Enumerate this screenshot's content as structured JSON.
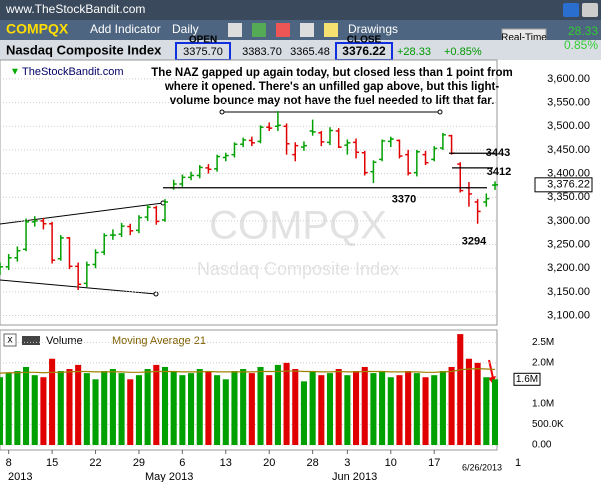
{
  "site": "www.TheStockBandit.com",
  "toolbar": {
    "symbol": "COMPQX",
    "add_indicator": "Add Indicator",
    "period": "Daily",
    "drawings": "Drawings",
    "realtime": "Real-Time",
    "change": "28.33",
    "change_pct": "0.85%"
  },
  "quote": {
    "name": "Nasdaq Composite Index",
    "open_label": "OPEN",
    "open": "3375.70",
    "high": "3383.70",
    "low": "3365.48",
    "close_label": "CLOSE",
    "close": "3376.22",
    "change": "+28.33",
    "change_pct": "+0.85%"
  },
  "chart_data": {
    "type": "ohlc",
    "source": "TheStockBandit.com",
    "watermark": "COMPQX",
    "watermark_name": "Nasdaq Composite Index",
    "annotation": [
      "The NAZ gapped up again today, but closed less than 1 point from",
      "where it opened. There's an unfilled gap above, but this light-",
      "volume bounce may not have the fuel needed to lift that far."
    ],
    "levels": [
      3443,
      3412,
      3370,
      3294
    ],
    "last_price": {
      "value": 3376.22,
      "label": "3,376.22"
    },
    "up_color": "#00a000",
    "down_color": "#e00000",
    "categories": [
      null,
      "8",
      null,
      null,
      null,
      null,
      "15",
      null,
      null,
      null,
      null,
      "22",
      null,
      null,
      null,
      null,
      "29",
      null,
      null,
      null,
      null,
      "6",
      null,
      null,
      null,
      null,
      "13",
      null,
      null,
      null,
      null,
      "20",
      null,
      null,
      null,
      null,
      "28",
      null,
      null,
      null,
      "3",
      null,
      null,
      null,
      null,
      "10",
      null,
      null,
      null,
      null,
      "17",
      null,
      null,
      null,
      null,
      null,
      null,
      null
    ],
    "months": [
      "2013",
      "May 2013",
      "Jun 2013"
    ],
    "last_date": "6/26/2013",
    "next_label": "1",
    "ohlc": [
      [
        3195,
        3212,
        3186,
        3203
      ],
      [
        3203,
        3230,
        3196,
        3222
      ],
      [
        3222,
        3246,
        3214,
        3237
      ],
      [
        3240,
        3305,
        3236,
        3298
      ],
      [
        3298,
        3310,
        3288,
        3300
      ],
      [
        3300,
        3306,
        3282,
        3294
      ],
      [
        3294,
        3298,
        3210,
        3217
      ],
      [
        3220,
        3270,
        3216,
        3264
      ],
      [
        3264,
        3266,
        3198,
        3204
      ],
      [
        3204,
        3212,
        3154,
        3166
      ],
      [
        3168,
        3214,
        3160,
        3207
      ],
      [
        3208,
        3240,
        3200,
        3233
      ],
      [
        3234,
        3274,
        3228,
        3269
      ],
      [
        3270,
        3282,
        3260,
        3270
      ],
      [
        3272,
        3296,
        3266,
        3289
      ],
      [
        3288,
        3294,
        3270,
        3279
      ],
      [
        3280,
        3312,
        3274,
        3307
      ],
      [
        3308,
        3334,
        3300,
        3329
      ],
      [
        3328,
        3332,
        3292,
        3299
      ],
      [
        3302,
        3346,
        3298,
        3340
      ],
      [
        3370,
        3387,
        3366,
        3378
      ],
      [
        3378,
        3398,
        3372,
        3392
      ],
      [
        3392,
        3404,
        3386,
        3396
      ],
      [
        3396,
        3418,
        3390,
        3413
      ],
      [
        3412,
        3420,
        3400,
        3409
      ],
      [
        3410,
        3440,
        3404,
        3436
      ],
      [
        3434,
        3444,
        3426,
        3438
      ],
      [
        3440,
        3466,
        3434,
        3462
      ],
      [
        3462,
        3476,
        3456,
        3471
      ],
      [
        3470,
        3478,
        3458,
        3465
      ],
      [
        3468,
        3502,
        3464,
        3498
      ],
      [
        3498,
        3508,
        3490,
        3496
      ],
      [
        3500,
        3532,
        3490,
        3502
      ],
      [
        3500,
        3506,
        3440,
        3463
      ],
      [
        3440,
        3466,
        3426,
        3459
      ],
      [
        3456,
        3468,
        3448,
        3459
      ],
      [
        3490,
        3514,
        3480,
        3488
      ],
      [
        3486,
        3490,
        3458,
        3467
      ],
      [
        3466,
        3498,
        3460,
        3491
      ],
      [
        3490,
        3496,
        3454,
        3456
      ],
      [
        3460,
        3472,
        3440,
        3465
      ],
      [
        3466,
        3474,
        3432,
        3445
      ],
      [
        3444,
        3448,
        3396,
        3402
      ],
      [
        3404,
        3428,
        3380,
        3424
      ],
      [
        3430,
        3472,
        3426,
        3469
      ],
      [
        3468,
        3478,
        3456,
        3473
      ],
      [
        3470,
        3472,
        3432,
        3437
      ],
      [
        3440,
        3450,
        3396,
        3401
      ],
      [
        3402,
        3450,
        3394,
        3446
      ],
      [
        3440,
        3448,
        3418,
        3423
      ],
      [
        3430,
        3458,
        3426,
        3453
      ],
      [
        3454,
        3486,
        3450,
        3482
      ],
      [
        3480,
        3482,
        3440,
        3443
      ],
      [
        3420,
        3424,
        3360,
        3364
      ],
      [
        3370,
        3382,
        3330,
        3357
      ],
      [
        3340,
        3346,
        3294,
        3320
      ],
      [
        3340,
        3358,
        3330,
        3347
      ],
      [
        3375.7,
        3383.7,
        3365.48,
        3376.22
      ]
    ],
    "ylim": [
      3080,
      3640
    ],
    "yticks": [
      {
        "value": 3100,
        "label": "3,100.00"
      },
      {
        "value": 3150,
        "label": "3,150.00"
      },
      {
        "value": 3200,
        "label": "3,200.00"
      },
      {
        "value": 3250,
        "label": "3,250.00"
      },
      {
        "value": 3300,
        "label": "3,300.00"
      },
      {
        "value": 3350,
        "label": "3,350.00"
      },
      {
        "value": 3400,
        "label": "3,400.00"
      },
      {
        "value": 3450,
        "label": "3,450.00"
      },
      {
        "value": 3500,
        "label": "3,500.00"
      },
      {
        "value": 3550,
        "label": "3,550.00"
      },
      {
        "value": 3600,
        "label": "3,600.00"
      }
    ],
    "volume": {
      "name": "Volume",
      "ma_name": "Moving Average 21",
      "ma_color": "#a08000",
      "values": [
        1650000,
        1750000,
        1800000,
        1900000,
        1700000,
        1650000,
        2100000,
        1800000,
        1850000,
        1950000,
        1750000,
        1600000,
        1800000,
        1850000,
        1750000,
        1600000,
        1700000,
        1850000,
        1950000,
        1900000,
        1800000,
        1700000,
        1750000,
        1850000,
        1800000,
        1700000,
        1600000,
        1800000,
        1850000,
        1750000,
        1900000,
        1700000,
        1950000,
        2000000,
        1850000,
        1550000,
        1800000,
        1700000,
        1750000,
        1850000,
        1700000,
        1800000,
        1900000,
        1750000,
        1800000,
        1650000,
        1700000,
        1800000,
        1750000,
        1650000,
        1700000,
        1800000,
        1900000,
        2700000,
        2100000,
        2000000,
        1650000,
        1600000
      ],
      "ma": [
        1750000,
        1760000,
        1760000,
        1770000,
        1770000,
        1760000,
        1770000,
        1770000,
        1780000,
        1790000,
        1790000,
        1780000,
        1780000,
        1780000,
        1780000,
        1770000,
        1770000,
        1780000,
        1790000,
        1790000,
        1790000,
        1780000,
        1780000,
        1780000,
        1790000,
        1780000,
        1780000,
        1780000,
        1780000,
        1780000,
        1790000,
        1790000,
        1790000,
        1800000,
        1800000,
        1790000,
        1790000,
        1780000,
        1780000,
        1790000,
        1780000,
        1780000,
        1790000,
        1790000,
        1790000,
        1780000,
        1780000,
        1780000,
        1780000,
        1770000,
        1770000,
        1780000,
        1790000,
        1830000,
        1850000,
        1860000,
        1850000,
        1840000
      ],
      "current": {
        "value": 1600000,
        "label": "1.6M"
      },
      "ylim": [
        0,
        2800000
      ],
      "yticks": [
        {
          "value": 0,
          "label": "0.00"
        },
        {
          "value": 500000,
          "label": "500.0K"
        },
        {
          "value": 1000000,
          "label": "1.0M"
        },
        {
          "value": 2000000,
          "label": "2.0M"
        },
        {
          "value": 2500000,
          "label": "2.5M"
        }
      ]
    }
  }
}
